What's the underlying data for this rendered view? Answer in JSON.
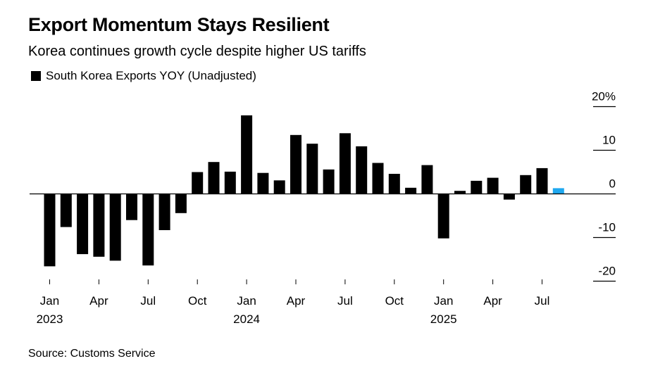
{
  "header": {
    "title": "Export Momentum Stays Resilient",
    "subtitle": "Korea continues growth cycle despite higher US tariffs"
  },
  "footer": {
    "source": "Source: Customs Service"
  },
  "colors": {
    "bar": "#000000",
    "highlight": "#1fa8ef",
    "axis": "#000000"
  },
  "chart_data": {
    "type": "bar",
    "title": "Export Momentum Stays Resilient",
    "subtitle": "Korea continues growth cycle despite higher US tariffs",
    "xlabel": "",
    "ylabel": "",
    "ylim": [
      -22,
      22
    ],
    "y_ticks": [
      {
        "value": 20,
        "label": "20%"
      },
      {
        "value": 10,
        "label": "10"
      },
      {
        "value": 0,
        "label": "0"
      },
      {
        "value": -10,
        "label": "-10"
      },
      {
        "value": -20,
        "label": "-20"
      }
    ],
    "legend": {
      "position": "top-left",
      "entries": [
        "South Korea Exports YOY (Unadjusted)"
      ]
    },
    "grid": false,
    "x_tick_labels": [
      {
        "index": 0,
        "month": "Jan",
        "year": "2023"
      },
      {
        "index": 3,
        "month": "Apr",
        "year": ""
      },
      {
        "index": 6,
        "month": "Jul",
        "year": ""
      },
      {
        "index": 9,
        "month": "Oct",
        "year": ""
      },
      {
        "index": 12,
        "month": "Jan",
        "year": "2024"
      },
      {
        "index": 15,
        "month": "Apr",
        "year": ""
      },
      {
        "index": 18,
        "month": "Jul",
        "year": ""
      },
      {
        "index": 21,
        "month": "Oct",
        "year": ""
      },
      {
        "index": 24,
        "month": "Jan",
        "year": "2025"
      },
      {
        "index": 27,
        "month": "Apr",
        "year": ""
      },
      {
        "index": 30,
        "month": "Jul",
        "year": ""
      }
    ],
    "series": [
      {
        "name": "South Korea Exports YOY (Unadjusted)",
        "categories": [
          "2023-01",
          "2023-02",
          "2023-03",
          "2023-04",
          "2023-05",
          "2023-06",
          "2023-07",
          "2023-08",
          "2023-09",
          "2023-10",
          "2023-11",
          "2023-12",
          "2024-01",
          "2024-02",
          "2024-03",
          "2024-04",
          "2024-05",
          "2024-06",
          "2024-07",
          "2024-08",
          "2024-09",
          "2024-10",
          "2024-11",
          "2024-12",
          "2025-01",
          "2025-02",
          "2025-03",
          "2025-04",
          "2025-05",
          "2025-06",
          "2025-07",
          "2025-08"
        ],
        "values": [
          -16.6,
          -7.6,
          -13.8,
          -14.4,
          -15.3,
          -6.0,
          -16.4,
          -8.3,
          -4.4,
          5.0,
          7.3,
          5.1,
          18.0,
          4.8,
          3.1,
          13.5,
          11.5,
          5.6,
          13.9,
          10.9,
          7.1,
          4.6,
          1.4,
          6.6,
          -10.2,
          0.7,
          3.0,
          3.7,
          -1.3,
          4.3,
          5.9,
          1.3
        ],
        "highlight_index": 31
      }
    ]
  }
}
